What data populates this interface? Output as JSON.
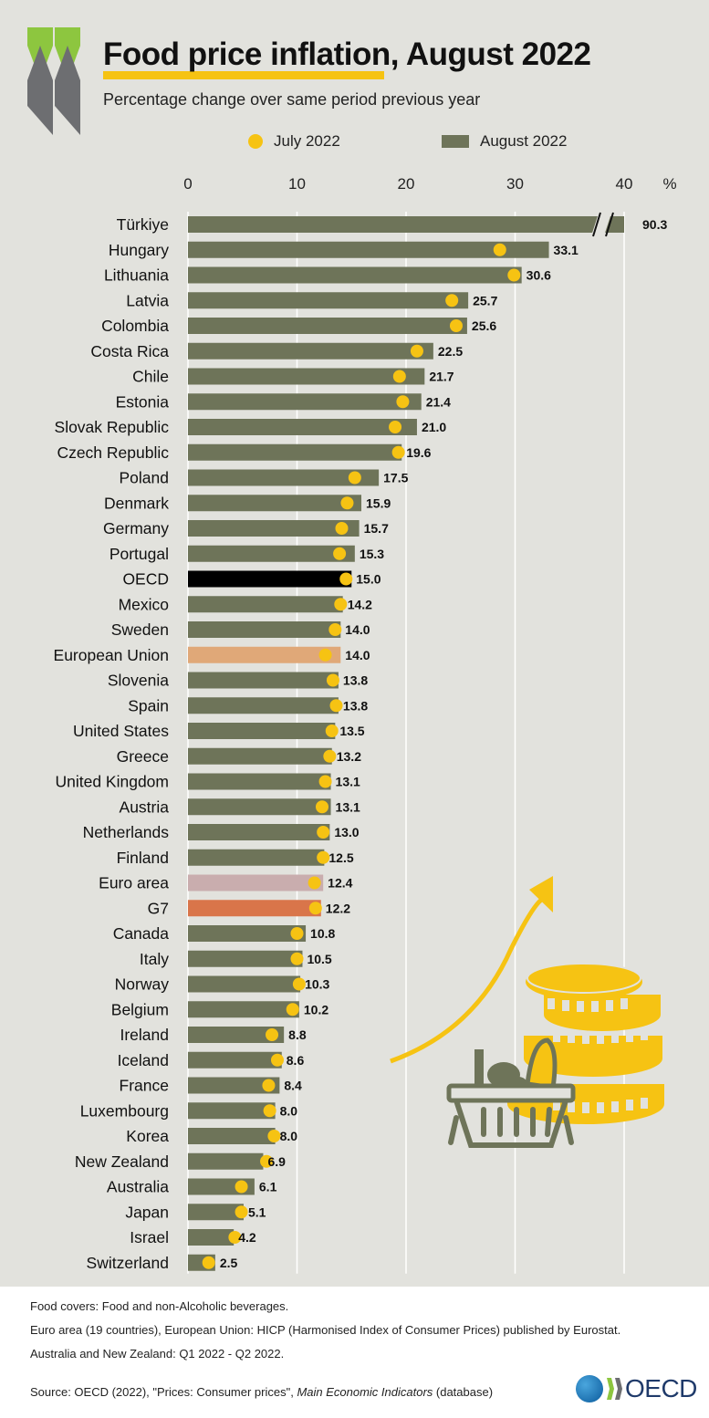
{
  "header": {
    "title_main": "Food price inflation",
    "title_rest": ", August 2022",
    "subtitle": "Percentage change over same period previous year"
  },
  "legend": {
    "july_label": "July 2022",
    "august_label": "August 2022"
  },
  "colors": {
    "bar": "#6e7459",
    "oecd": "#000000",
    "european_union": "#e0a878",
    "euro_area": "#c9adae",
    "g7": "#d9754a",
    "dot": "#f6c313",
    "accent_green": "#8dc63f",
    "accent_dark": "#6d6e71"
  },
  "chart_data": {
    "type": "bar",
    "orientation": "horizontal",
    "xlim": [
      0,
      40
    ],
    "x_ticks": [
      "0",
      "10",
      "20",
      "30",
      "40"
    ],
    "x_unit": "%",
    "axis_break": true,
    "categories": [
      "Türkiye",
      "Hungary",
      "Lithuania",
      "Latvia",
      "Colombia",
      "Costa Rica",
      "Chile",
      "Estonia",
      "Slovak Republic",
      "Czech Republic",
      "Poland",
      "Denmark",
      "Germany",
      "Portugal",
      "OECD",
      "Mexico",
      "Sweden",
      "European Union",
      "Slovenia",
      "Spain",
      "United States",
      "Greece",
      "United Kingdom",
      "Austria",
      "Netherlands",
      "Finland",
      "Euro area",
      "G7",
      "Canada",
      "Italy",
      "Norway",
      "Belgium",
      "Ireland",
      "Iceland",
      "France",
      "Luxembourg",
      "Korea",
      "New Zealand",
      "Australia",
      "Japan",
      "Israel",
      "Switzerland"
    ],
    "series": [
      {
        "name": "August 2022",
        "mark": "bar",
        "values": [
          90.3,
          33.1,
          30.6,
          25.7,
          25.6,
          22.5,
          21.7,
          21.4,
          21.0,
          19.6,
          17.5,
          15.9,
          15.7,
          15.3,
          15.0,
          14.2,
          14.0,
          14.0,
          13.8,
          13.8,
          13.5,
          13.2,
          13.1,
          13.1,
          13.0,
          12.5,
          12.4,
          12.2,
          10.8,
          10.5,
          10.3,
          10.2,
          8.8,
          8.6,
          8.4,
          8.0,
          8.0,
          6.9,
          6.1,
          5.1,
          4.2,
          2.5
        ],
        "labels": [
          "90.3",
          "33.1",
          "30.6",
          "25.7",
          "25.6",
          "22.5",
          "21.7",
          "21.4",
          "21.0",
          "19.6",
          "17.5",
          "15.9",
          "15.7",
          "15.3",
          "15.0",
          "14.2",
          "14.0",
          "14.0",
          "13.8",
          "13.8",
          "13.5",
          "13.2",
          "13.1",
          "13.1",
          "13.0",
          "12.5",
          "12.4",
          "12.2",
          "10.8",
          "10.5",
          "10.3",
          "10.2",
          "8.8",
          "8.6",
          "8.4",
          "8.0",
          "8.0",
          "6.9",
          "6.1",
          "5.1",
          "4.2",
          "2.5"
        ]
      },
      {
        "name": "July 2022",
        "mark": "dot",
        "values": [
          null,
          28.6,
          29.9,
          24.2,
          24.6,
          21.0,
          19.4,
          19.7,
          19.0,
          19.3,
          15.3,
          14.6,
          14.1,
          13.9,
          14.5,
          14.0,
          13.5,
          12.6,
          13.3,
          13.6,
          13.2,
          13.0,
          12.6,
          12.3,
          12.4,
          12.4,
          11.6,
          11.7,
          10.0,
          10.0,
          10.2,
          9.6,
          7.7,
          8.2,
          7.4,
          7.5,
          7.9,
          7.2,
          4.9,
          4.9,
          4.3,
          1.9
        ]
      }
    ],
    "highlight": {
      "OECD": "oecd",
      "European Union": "european_union",
      "Euro area": "euro_area",
      "G7": "g7"
    }
  },
  "footer": {
    "note1": "Food covers: Food and non-Alcoholic beverages.",
    "note2": "Euro area (19 countries), European Union: HICP (Harmonised Index of Consumer Prices) published by Eurostat.",
    "note3": "Australia and New Zealand:  Q1 2022 - Q2 2022.",
    "source_prefix": "Source: OECD (2022), \"Prices: Consumer prices\", ",
    "source_italic": "Main Economic Indicators",
    "source_suffix": " (database)",
    "logo_text": "OECD"
  }
}
